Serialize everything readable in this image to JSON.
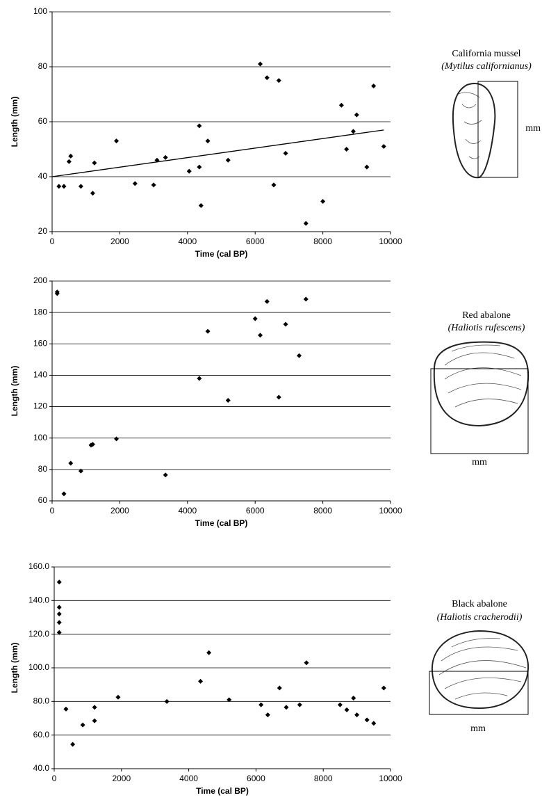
{
  "chart_data": [
    {
      "type": "scatter",
      "x_label": "Time (cal BP)",
      "y_label": "Length (mm)",
      "color": "#000000",
      "grid": true,
      "xlim": [
        0,
        10000
      ],
      "xticks": [
        0,
        2000,
        4000,
        6000,
        8000,
        10000
      ],
      "ylim": [
        20,
        100
      ],
      "yticks": [
        20,
        40,
        60,
        80,
        100
      ],
      "x": [
        200,
        350,
        500,
        550,
        850,
        1200,
        1250,
        1900,
        2450,
        3000,
        3100,
        3350,
        4050,
        4350,
        4350,
        4400,
        4600,
        5200,
        6150,
        6350,
        6550,
        6700,
        6900,
        7500,
        8000,
        8550,
        8700,
        8900,
        9000,
        9300,
        9500,
        9800
      ],
      "y": [
        36.5,
        36.5,
        45.5,
        47.5,
        36.5,
        34,
        45,
        53,
        37.5,
        37,
        46,
        47,
        42,
        43.5,
        58.5,
        29.5,
        53,
        46,
        81,
        76,
        37,
        75,
        48.5,
        23,
        31,
        66,
        50,
        56.5,
        62.5,
        43.5,
        73,
        51
      ],
      "trendline": {
        "x": [
          0,
          9800
        ],
        "y": [
          40,
          57
        ]
      },
      "species": {
        "common": "California mussel",
        "scientific": "(Mytilus californianus)",
        "unit": "mm"
      }
    },
    {
      "type": "scatter",
      "x_label": "Time (cal BP)",
      "y_label": "Length (mm)",
      "color": "#000000",
      "grid": true,
      "xlim": [
        0,
        10000
      ],
      "xticks": [
        0,
        2000,
        4000,
        6000,
        8000,
        10000
      ],
      "ylim": [
        60,
        200
      ],
      "yticks": [
        60,
        80,
        100,
        120,
        140,
        160,
        180,
        200
      ],
      "x": [
        150,
        150,
        350,
        550,
        850,
        1150,
        1200,
        1900,
        3350,
        4350,
        4600,
        5200,
        6000,
        6150,
        6350,
        6700,
        6900,
        7300,
        7500
      ],
      "y": [
        192,
        193,
        64.5,
        84,
        79,
        95.5,
        96,
        99.5,
        76.5,
        138,
        168,
        124,
        176,
        165.5,
        187,
        126,
        172.5,
        152.5,
        188.5
      ],
      "species": {
        "common": "Red abalone",
        "scientific": "(Haliotis rufescens)",
        "unit": "mm"
      }
    },
    {
      "type": "scatter",
      "x_label": "Time (cal BP)",
      "y_label": "Length (mm)",
      "color": "#000000",
      "grid": true,
      "xlim": [
        0,
        10000
      ],
      "xticks": [
        0,
        2000,
        4000,
        6000,
        8000,
        10000
      ],
      "ylim": [
        40,
        160
      ],
      "yticks": [
        {
          "value": 40,
          "label": "40.0"
        },
        {
          "value": 60,
          "label": "60.0"
        },
        {
          "value": 80,
          "label": "80.0"
        },
        {
          "value": 100,
          "label": "100.0"
        },
        {
          "value": 120,
          "label": "120.0"
        },
        {
          "value": 140,
          "label": "140.0"
        },
        {
          "value": 160,
          "label": "160.0"
        }
      ],
      "x": [
        150,
        150,
        150,
        150,
        150,
        350,
        550,
        850,
        1200,
        1200,
        1900,
        3350,
        4350,
        4600,
        5200,
        6150,
        6350,
        6700,
        6900,
        7300,
        7500,
        8500,
        8700,
        8900,
        9000,
        9300,
        9500,
        9800
      ],
      "y": [
        151,
        136,
        132,
        127,
        121,
        75.5,
        54.5,
        66,
        68.5,
        76.5,
        82.5,
        80,
        92,
        109,
        81,
        78,
        72,
        88,
        76.5,
        78,
        103,
        78,
        75,
        82,
        72,
        69,
        67,
        88
      ],
      "species": {
        "common": "Black abalone",
        "scientific": "(Haliotis cracherodii)",
        "unit": "mm"
      }
    }
  ]
}
